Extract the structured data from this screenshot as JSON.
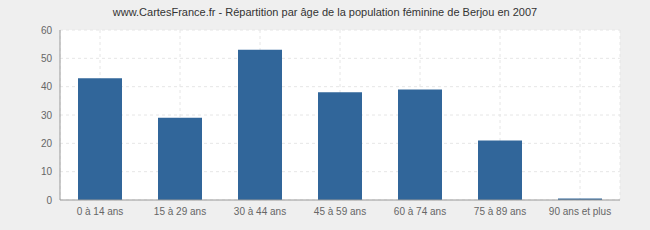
{
  "chart_data": {
    "type": "bar",
    "title": "www.CartesFrance.fr - Répartition par âge de la population féminine de Berjou en 2007",
    "categories": [
      "0 à 14 ans",
      "15 à 29 ans",
      "30 à 44 ans",
      "45 à 59 ans",
      "60 à 74 ans",
      "75 à 89 ans",
      "90 ans et plus"
    ],
    "values": [
      43,
      29,
      53,
      38,
      39,
      21,
      0.5
    ],
    "color": "#31669a",
    "ylim": [
      0,
      60
    ],
    "yticks": [
      0,
      10,
      20,
      30,
      40,
      50,
      60
    ],
    "grid": true
  }
}
